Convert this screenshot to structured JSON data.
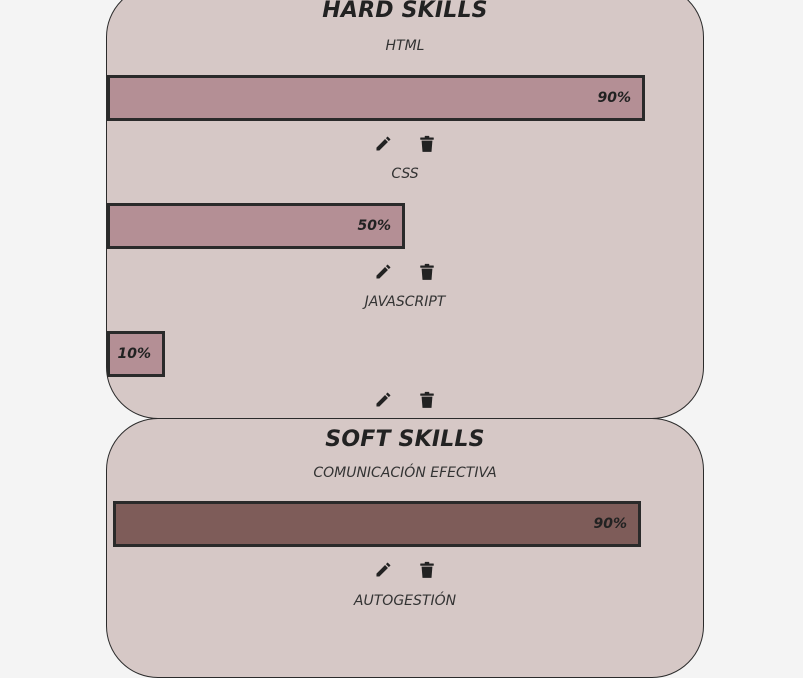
{
  "hard_skills": {
    "title": "HARD SKILLS",
    "bar_color": "#b48f95",
    "items": [
      {
        "name": "HTML",
        "percent_label": "90%",
        "level": 0.9
      },
      {
        "name": "CSS",
        "percent_label": "50%",
        "level": 0.5
      },
      {
        "name": "JAVASCRIPT",
        "percent_label": "10%",
        "level": 0.1
      }
    ]
  },
  "soft_skills": {
    "title": "SOFT SKILLS",
    "bar_color": "#7e5c59",
    "items": [
      {
        "name": "COMUNICACIÓN EFECTIVA",
        "percent_label": "90%",
        "level": 0.9
      },
      {
        "name": "AUTOGESTIÓN"
      }
    ]
  },
  "icons": {
    "edit": "pencil-icon",
    "delete": "trash-icon"
  },
  "colors": {
    "card_bg": "#d6c8c6",
    "page_bg": "#f4f4f4",
    "border": "#2a2a2a"
  }
}
